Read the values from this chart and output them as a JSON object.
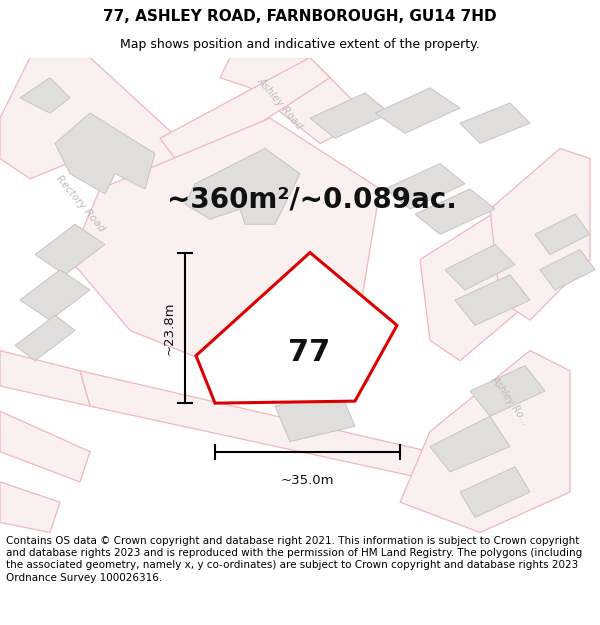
{
  "title_line1": "77, ASHLEY ROAD, FARNBOROUGH, GU14 7HD",
  "title_line2": "Map shows position and indicative extent of the property.",
  "area_text": "~360m²/~0.089ac.",
  "width_label": "~35.0m",
  "height_label": "~23.8m",
  "number_label": "77",
  "footer_text": "Contains OS data © Crown copyright and database right 2021. This information is subject to Crown copyright and database rights 2023 and is reproduced with the permission of HM Land Registry. The polygons (including the associated geometry, namely x, y co-ordinates) are subject to Crown copyright and database rights 2023 Ordnance Survey 100026316.",
  "map_bg": "#f8f7f5",
  "building_color": "#e0dedd",
  "building_edge": "#c8c4c0",
  "road_line_color": "#f0b8b8",
  "road_fill_color": "#faf0f0",
  "highlight_color": "#dd0000",
  "prop_fill": "#ffffff",
  "dim_line_color": "#111111",
  "road_label_color": "#c0bcbc",
  "title_fontsize": 11,
  "subtitle_fontsize": 9,
  "area_fontsize": 20,
  "number_fontsize": 22,
  "dim_fontsize": 9.5,
  "footer_fontsize": 7.5
}
